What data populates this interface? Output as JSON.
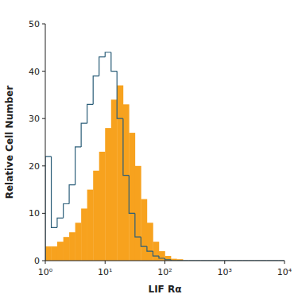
{
  "chart_data": {
    "type": "histogram",
    "x_label": "LIF Rα",
    "y_label": "Relative Cell Number",
    "log": "x",
    "xlim": [
      1,
      10000
    ],
    "ylim": [
      0,
      50
    ],
    "xticks": [
      {
        "value": 1,
        "label": "10⁰"
      },
      {
        "value": 10,
        "label": "10¹"
      },
      {
        "value": 100,
        "label": "10²"
      },
      {
        "value": 1000,
        "label": "10³"
      },
      {
        "value": 10000,
        "label": "10⁴"
      }
    ],
    "yticks": [
      0,
      10,
      20,
      30,
      40,
      50
    ],
    "bins": [
      1,
      1.26,
      1.58,
      2,
      2.51,
      3.16,
      3.98,
      5.01,
      6.31,
      7.94,
      10,
      12.6,
      15.8,
      20,
      25.1,
      31.6,
      39.8,
      50.1,
      63.1,
      79.4,
      100,
      126,
      158,
      200,
      251,
      316,
      398,
      501,
      631,
      794,
      1000,
      1260,
      1580,
      2000,
      2510,
      3160,
      3980,
      5010,
      6310,
      7940,
      10000
    ],
    "series": [
      {
        "type": "bar",
        "color": "#f7a21e",
        "values": [
          3,
          3,
          4,
          5,
          6,
          8,
          11,
          15,
          19,
          23,
          28,
          34,
          37,
          33,
          27,
          20,
          13,
          8,
          4,
          2,
          1,
          0.4,
          0.3,
          0,
          0,
          0,
          0,
          0,
          0,
          0,
          0,
          0,
          0,
          0,
          0,
          0,
          0,
          0,
          0,
          0
        ]
      },
      {
        "type": "step",
        "color": "#2a5d78",
        "values": [
          22,
          7,
          9,
          12,
          16,
          24,
          29,
          33,
          39,
          43,
          44,
          40,
          30,
          18,
          10,
          5,
          3,
          2,
          1,
          0.5,
          0.2,
          0,
          0,
          0,
          0,
          0,
          0,
          0,
          0,
          0,
          0,
          0,
          0,
          0,
          0,
          0,
          0,
          0,
          0,
          0
        ]
      }
    ]
  }
}
